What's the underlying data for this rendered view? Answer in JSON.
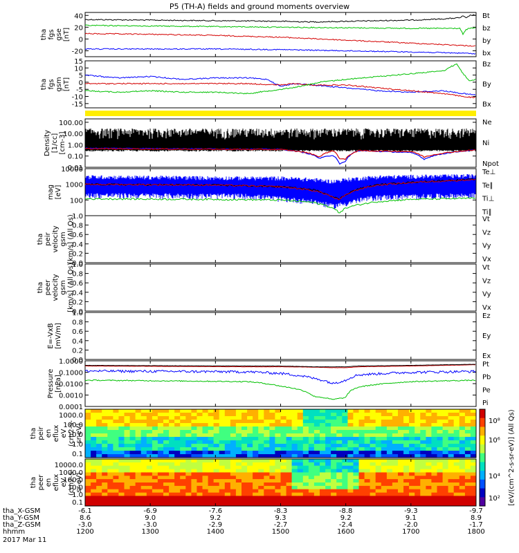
{
  "title": "P5 (TH-A) fields and ground moments overview",
  "chart_data": {
    "type": "line",
    "x_range": [
      1200,
      1800
    ],
    "panels": [
      {
        "id": "fgs-gse",
        "ylabel": [
          "tha",
          "fgs",
          "gse",
          "[nT]"
        ],
        "ylim": [
          -30,
          45
        ],
        "ticks": [
          40,
          20,
          0,
          -20
        ],
        "legend": [
          {
            "name": "Bt",
            "color": "#000000"
          },
          {
            "name": "bz",
            "color": "#d40000"
          },
          {
            "name": "by",
            "color": "#00c000"
          },
          {
            "name": "bx",
            "color": "#0000ff"
          }
        ],
        "series": [
          {
            "name": "Bt",
            "color": "#000000",
            "x": [
              1200,
              1300,
              1400,
              1500,
              1540,
              1560,
              1600,
              1650,
              1700,
              1750,
              1775,
              1780,
              1785,
              1790,
              1800
            ],
            "y": [
              33,
              32,
              31,
              30,
              29,
              29,
              30,
              31,
              32,
              34,
              36,
              39,
              35,
              40,
              41
            ]
          },
          {
            "name": "by",
            "color": "#00c000",
            "x": [
              1200,
              1300,
              1400,
              1500,
              1600,
              1700,
              1775,
              1780,
              1785,
              1790,
              1800
            ],
            "y": [
              23,
              22,
              21,
              20,
              19,
              18,
              18,
              8,
              16,
              18,
              19
            ]
          },
          {
            "name": "bz",
            "color": "#d40000",
            "x": [
              1200,
              1300,
              1400,
              1500,
              1600,
              1700,
              1780,
              1800
            ],
            "y": [
              9,
              8,
              6,
              3,
              -2,
              -7,
              -11,
              -12
            ]
          },
          {
            "name": "bx",
            "color": "#0000ff",
            "x": [
              1200,
              1300,
              1400,
              1500,
              1600,
              1700,
              1780,
              1800
            ],
            "y": [
              -17,
              -17,
              -17,
              -18,
              -20,
              -22,
              -24,
              -25
            ]
          }
        ]
      },
      {
        "id": "fgs-gsm",
        "ylabel": [
          "tha",
          "fgs",
          "gsm",
          "[nT]"
        ],
        "ylim": [
          -18,
          15
        ],
        "ticks": [
          15,
          10,
          5,
          0,
          -5,
          -10,
          -15
        ],
        "legend": [
          {
            "name": "Bz",
            "color": "#d40000"
          },
          {
            "name": "By",
            "color": "#00c000"
          },
          {
            "name": "Bx",
            "color": "#0000ff"
          }
        ],
        "series": [
          {
            "name": "Bx",
            "color": "#0000ff",
            "x": [
              1200,
              1250,
              1300,
              1350,
              1400,
              1450,
              1480,
              1500,
              1520,
              1550,
              1600,
              1650,
              1700,
              1750,
              1780,
              1800
            ],
            "y": [
              5,
              3,
              4,
              2,
              3,
              3,
              2,
              -3,
              -1,
              -2,
              -4,
              -6,
              -7,
              -6,
              -8,
              -9
            ]
          },
          {
            "name": "Bz",
            "color": "#d40000",
            "x": [
              1200,
              1250,
              1300,
              1350,
              1400,
              1450,
              1500,
              1520,
              1550,
              1600,
              1650,
              1700,
              1750,
              1780,
              1800
            ],
            "y": [
              -1,
              -1,
              -1,
              -1,
              -1,
              -1,
              -2,
              -1,
              -2,
              -2,
              -4,
              -6,
              -8,
              -10,
              -11
            ]
          },
          {
            "name": "By",
            "color": "#00c000",
            "x": [
              1200,
              1250,
              1300,
              1350,
              1400,
              1450,
              1500,
              1530,
              1560,
              1600,
              1650,
              1700,
              1750,
              1770,
              1780,
              1790,
              1800
            ],
            "y": [
              -6,
              -7,
              -6,
              -7,
              -7,
              -8,
              -5,
              -3,
              0,
              2,
              4,
              6,
              8,
              13,
              6,
              1,
              2
            ]
          }
        ]
      },
      {
        "id": "moments-density",
        "ylabel": [
          "Density",
          "[1/cc]",
          "[cm-3]"
        ],
        "ylim": [
          0.01,
          200
        ],
        "scale": "log",
        "ticks": [
          "100.00",
          "10.00",
          "1.00",
          "0.10",
          "0.01"
        ],
        "legend": [
          {
            "name": "Ne",
            "color": "#d40000"
          },
          {
            "name": "Ni",
            "color": "#000000"
          },
          {
            "name": "Npot",
            "color": "#0000ff"
          }
        ]
      },
      {
        "id": "moments-temp",
        "ylabel": [
          "mag",
          "[eV]"
        ],
        "ylim": [
          10,
          10000
        ],
        "scale": "log",
        "ticks": [
          "10000",
          "1000",
          "100"
        ],
        "legend": [
          {
            "name": "Te⊥",
            "color": "#d40000"
          },
          {
            "name": "Te∥",
            "color": "#000000"
          },
          {
            "name": "Ti⊥",
            "color": "#00c000"
          },
          {
            "name": "Ti∥",
            "color": "#00c000"
          }
        ]
      },
      {
        "id": "peir-velocity",
        "ylabel": [
          "tha",
          "peir",
          "velocity",
          "gsm",
          "[km/s] (All Qs)"
        ],
        "ylim": [
          0,
          1
        ],
        "ticks": [
          "1.0",
          "0.8",
          "0.6",
          "0.4",
          "0.2",
          "0.0"
        ],
        "legend": [
          {
            "name": "Vt",
            "color": "#000000"
          },
          {
            "name": "Vz",
            "color": "#d40000"
          },
          {
            "name": "Vy",
            "color": "#00c000"
          },
          {
            "name": "Vx",
            "color": "#0000ff"
          }
        ]
      },
      {
        "id": "peer-velocity",
        "ylabel": [
          "tha",
          "peer",
          "velocity",
          "gsm",
          "[km/s] (All Qs)"
        ],
        "ylim": [
          0,
          1
        ],
        "ticks": [
          "1.0",
          "0.8",
          "0.6",
          "0.4",
          "0.2",
          "0.0"
        ],
        "legend": [
          {
            "name": "Vt",
            "color": "#000000"
          },
          {
            "name": "Vz",
            "color": "#d40000"
          },
          {
            "name": "Vy",
            "color": "#00c000"
          },
          {
            "name": "Vx",
            "color": "#0000ff"
          }
        ]
      },
      {
        "id": "e-vxb",
        "ylabel": [
          "E=-VxB",
          "[mV/m]"
        ],
        "ylim": [
          0,
          1
        ],
        "ticks": [
          "1.0",
          "0.8",
          "0.6",
          "0.4",
          "0.2",
          "0.0"
        ],
        "legend": [
          {
            "name": "Ez",
            "color": "#d40000"
          },
          {
            "name": "Ey",
            "color": "#00c000"
          },
          {
            "name": "Ex",
            "color": "#0000ff"
          }
        ]
      },
      {
        "id": "pressure",
        "ylabel": [
          "Pressure",
          "[nPa]"
        ],
        "ylim": [
          0.0001,
          1
        ],
        "scale": "log",
        "ticks": [
          "1.0000",
          "0.1000",
          "0.0100",
          "0.0010",
          "0.0001"
        ],
        "legend": [
          {
            "name": "Pt",
            "color": "#000000"
          },
          {
            "name": "Pb",
            "color": "#d40000"
          },
          {
            "name": "Pe",
            "color": "#00c000"
          },
          {
            "name": "Pi",
            "color": "#0000ff"
          }
        ]
      },
      {
        "id": "peir-spectrogram",
        "type": "heatmap",
        "ylabel": [
          "tha",
          "peir",
          "en",
          "eflux",
          "eV",
          "(cm2-s-",
          "sr-eV)"
        ],
        "scale": "log",
        "ticks": [
          "1000.0",
          "100.0",
          "10.0",
          "1.0",
          "0.1"
        ]
      },
      {
        "id": "peer-spectrogram",
        "type": "heatmap",
        "ylabel": [
          "tha",
          "peer",
          "en",
          "eflux",
          "eV",
          "(cm2-s-",
          "sr-eV)"
        ],
        "scale": "log",
        "ticks": [
          "10000.0",
          "1000.0",
          "100.0",
          "10.0",
          "1.0",
          "0.1"
        ]
      }
    ],
    "colorbar": {
      "label": "[eV/(cm^2-s-sr-eV)] (All Qs)",
      "ticks": [
        "10⁸",
        "10⁶",
        "10⁴",
        "10²"
      ]
    },
    "x_axis": {
      "rows": [
        {
          "label": "tha_X-GSM",
          "values": [
            "-6.1",
            "-6.9",
            "-7.6",
            "-8.3",
            "-8.8",
            "-9.3",
            "-9.7"
          ]
        },
        {
          "label": "tha_Y-GSM",
          "values": [
            "8.6",
            "9.0",
            "9.2",
            "9.3",
            "9.2",
            "9.1",
            "8.9"
          ]
        },
        {
          "label": "tha_Z-GSM",
          "values": [
            "-3.0",
            "-3.0",
            "-2.9",
            "-2.7",
            "-2.4",
            "-2.0",
            "-1.7"
          ]
        },
        {
          "label": "hhmm",
          "values": [
            "1200",
            "1300",
            "1400",
            "1500",
            "1600",
            "1700",
            "1800"
          ]
        }
      ],
      "date": "2017 Mar 11"
    }
  }
}
